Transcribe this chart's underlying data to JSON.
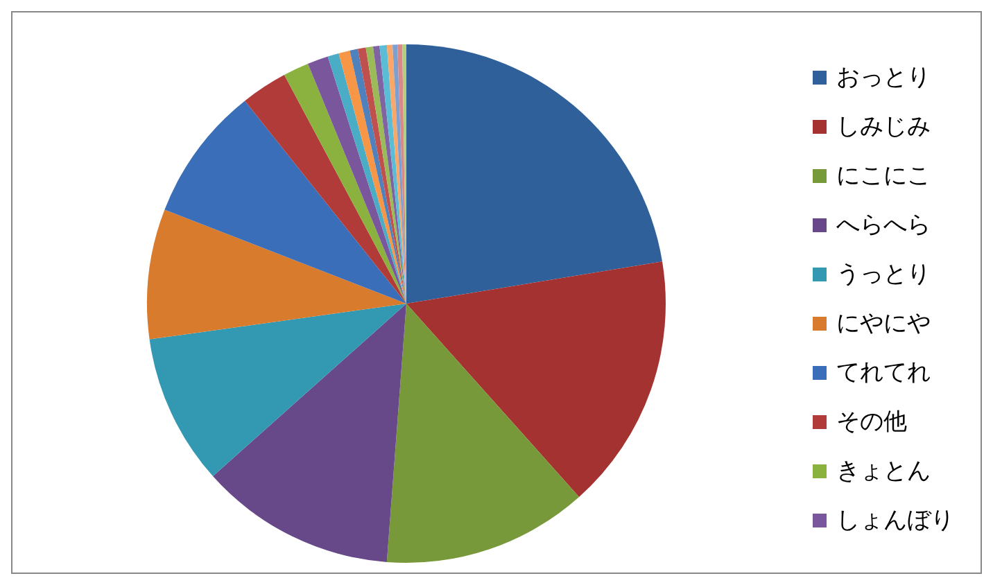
{
  "chart_data": {
    "type": "pie",
    "categories": [
      "おっとり",
      "しみじみ",
      "にこにこ",
      "へらへら",
      "うっとり",
      "にやにや",
      "てれてれ",
      "その他",
      "きょとん",
      "しょんぼり",
      null,
      null,
      null,
      null,
      null,
      null,
      null,
      null,
      null,
      null,
      null
    ],
    "values": [
      22.4,
      16,
      12.8,
      12.2,
      9.4,
      8.1,
      8.4,
      2.9,
      1.6,
      1.3,
      0.7,
      0.7,
      0.5,
      0.5,
      0.45,
      0.4,
      0.45,
      0.35,
      0.3,
      0.3,
      0.25
    ],
    "colors": [
      "#30609a",
      "#a33230",
      "#78993a",
      "#674888",
      "#3399b2",
      "#d97b2c",
      "#3a6eb8",
      "#b03b39",
      "#8bb23f",
      "#7a579c",
      "#4bacc6",
      "#f79646",
      "#4f81bd",
      "#c0504d",
      "#9bbb59",
      "#8064a2",
      "#5bbcd6",
      "#f9a86a",
      "#7ea0d0",
      "#d98a88",
      "#b5cd80"
    ],
    "legend": "right"
  }
}
